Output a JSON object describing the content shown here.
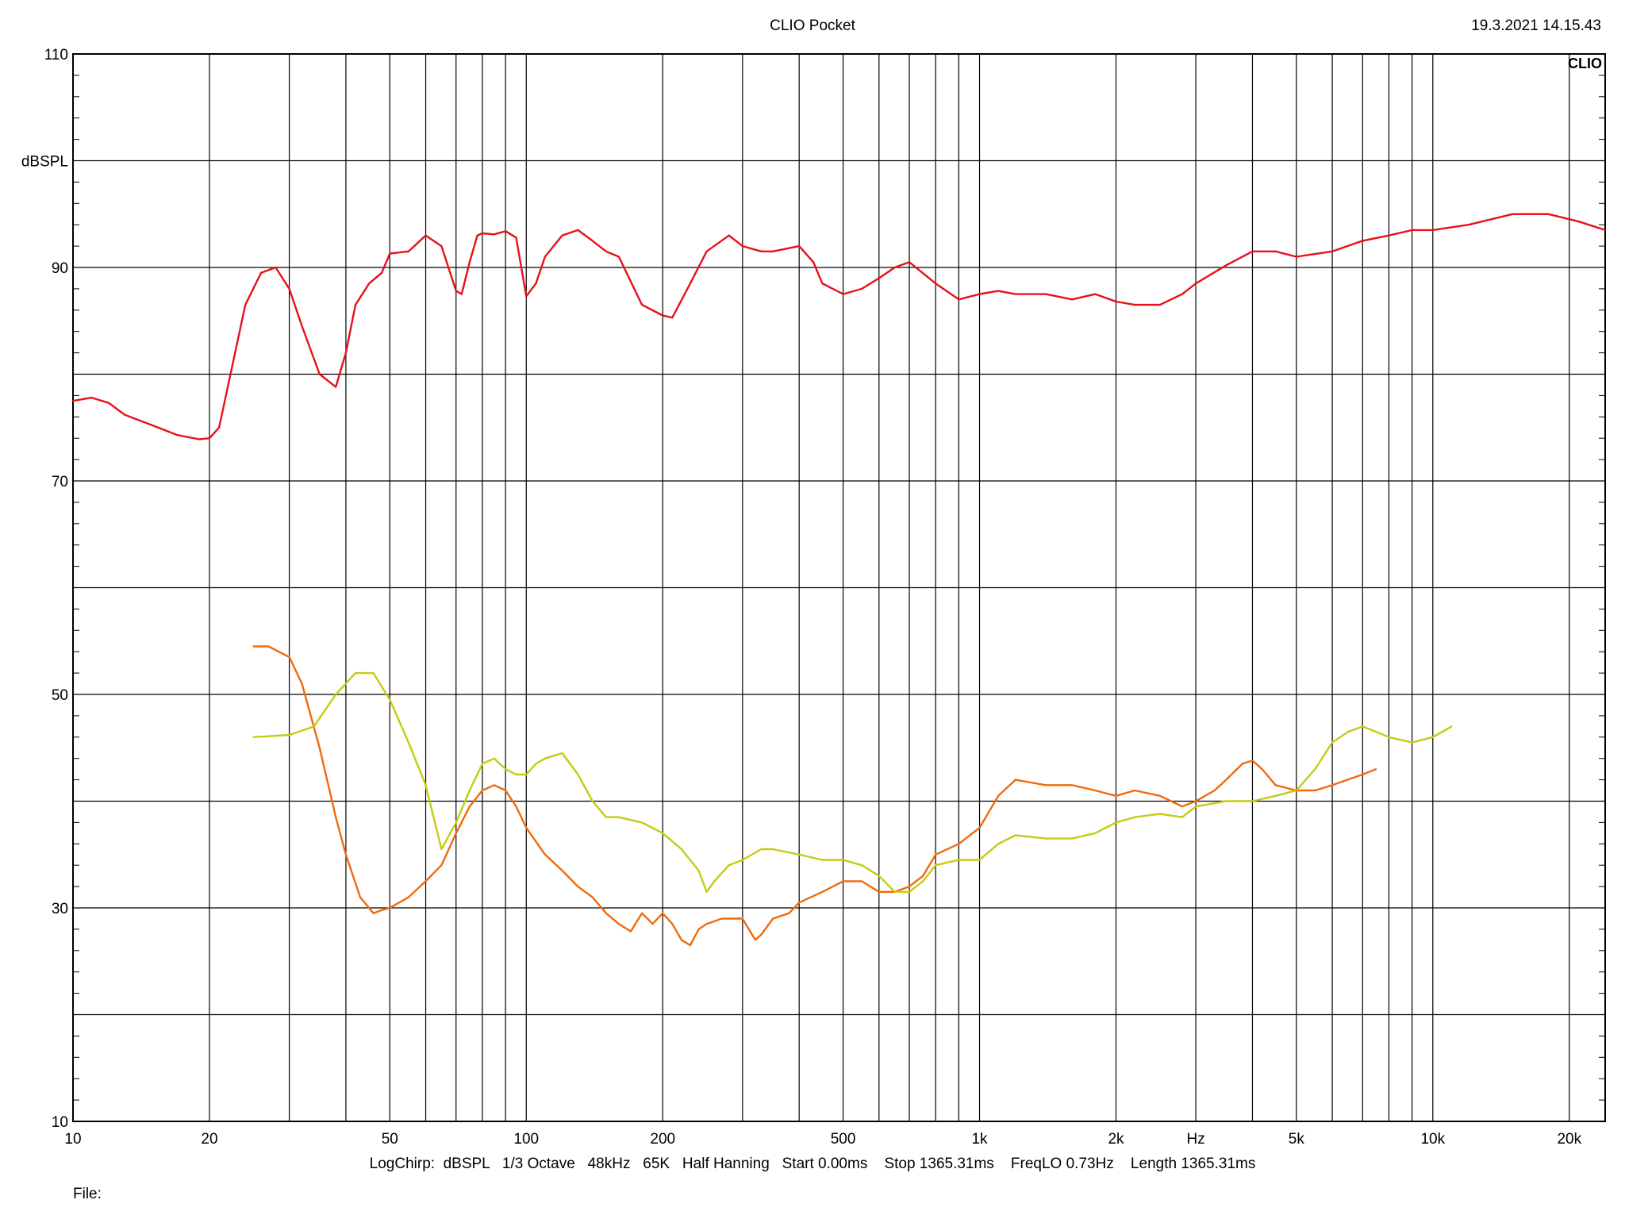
{
  "header": {
    "title": "CLIO Pocket",
    "datetime": "19.3.2021 14.15.43",
    "logo_text": "CLIO"
  },
  "footer": {
    "params": "LogChirp:  dBSPL   1/3 Octave   48kHz   65K   Half Hanning   Start 0.00ms    Stop 1365.31ms    FreqLO 0.73Hz    Length 1365.31ms",
    "file_label": "File:"
  },
  "colors": {
    "red": "#e8101a",
    "orange": "#f06a0c",
    "yellow": "#c4cc12",
    "grid": "#000000"
  },
  "chart_data": {
    "type": "line",
    "title": "CLIO Pocket",
    "xlabel": "Hz",
    "ylabel": "dBSPL",
    "xscale": "log",
    "xlim": [
      10,
      24000
    ],
    "ylim": [
      10,
      110
    ],
    "grid": true,
    "y_ticks": [
      {
        "v": 10,
        "label": "10"
      },
      {
        "v": 30,
        "label": "30"
      },
      {
        "v": 50,
        "label": "50"
      },
      {
        "v": 70,
        "label": "70"
      },
      {
        "v": 90,
        "label": "90"
      },
      {
        "v": 110,
        "label": "110"
      }
    ],
    "x_ticks": [
      {
        "v": 10,
        "label": "10"
      },
      {
        "v": 20,
        "label": "20"
      },
      {
        "v": 50,
        "label": "50"
      },
      {
        "v": 100,
        "label": "100"
      },
      {
        "v": 200,
        "label": "200"
      },
      {
        "v": 500,
        "label": "500"
      },
      {
        "v": 1000,
        "label": "1k"
      },
      {
        "v": 2000,
        "label": "2k"
      },
      {
        "v": 5000,
        "label": "5k"
      },
      {
        "v": 10000,
        "label": "10k"
      },
      {
        "v": 20000,
        "label": "20k"
      }
    ],
    "x_unit_label": "Hz",
    "series": [
      {
        "color": "#e8101a",
        "x": [
          10,
          11,
          12,
          13,
          15,
          17,
          19,
          20,
          21,
          22,
          24,
          26,
          28,
          30,
          32,
          35,
          38,
          40,
          42,
          45,
          48,
          50,
          55,
          60,
          65,
          70,
          72,
          75,
          78,
          80,
          85,
          90,
          95,
          100,
          105,
          110,
          120,
          130,
          140,
          150,
          160,
          180,
          200,
          210,
          230,
          250,
          280,
          300,
          330,
          350,
          400,
          430,
          450,
          500,
          550,
          600,
          650,
          700,
          800,
          900,
          1000,
          1100,
          1200,
          1400,
          1600,
          1800,
          2000,
          2200,
          2500,
          2800,
          3000,
          3500,
          4000,
          4500,
          5000,
          6000,
          7000,
          8000,
          9000,
          10000,
          12000,
          15000,
          18000,
          21000,
          24000
        ],
        "y": [
          77.5,
          77.8,
          77.3,
          76.2,
          75.2,
          74.3,
          73.9,
          74.0,
          75.0,
          79.0,
          86.5,
          89.5,
          90.0,
          88.0,
          84.5,
          80.0,
          78.8,
          82.0,
          86.5,
          88.5,
          89.5,
          91.3,
          91.5,
          93.0,
          92.0,
          87.8,
          87.5,
          90.5,
          93.0,
          93.2,
          93.1,
          93.4,
          92.8,
          87.3,
          88.5,
          91.0,
          93.0,
          93.5,
          92.5,
          91.5,
          91.0,
          86.5,
          85.5,
          85.3,
          88.5,
          91.5,
          93.0,
          92.0,
          91.5,
          91.5,
          92.0,
          90.5,
          88.5,
          87.5,
          88.0,
          89.0,
          90.0,
          90.5,
          88.5,
          87.0,
          87.5,
          87.8,
          87.5,
          87.5,
          87.0,
          87.5,
          86.8,
          86.5,
          86.5,
          87.5,
          88.5,
          90.2,
          91.5,
          91.5,
          91.0,
          91.5,
          92.5,
          93.0,
          93.5,
          93.5,
          94.0,
          95.0,
          95.0,
          94.3,
          93.5
        ]
      },
      {
        "color": "#f06a0c",
        "x": [
          25,
          27,
          30,
          32,
          35,
          38,
          40,
          43,
          46,
          48,
          50,
          55,
          60,
          65,
          70,
          75,
          80,
          85,
          90,
          95,
          100,
          110,
          120,
          130,
          140,
          150,
          160,
          170,
          180,
          190,
          200,
          210,
          220,
          230,
          240,
          250,
          270,
          300,
          320,
          330,
          350,
          380,
          400,
          450,
          500,
          550,
          600,
          650,
          700,
          750,
          800,
          900,
          1000,
          1100,
          1200,
          1400,
          1600,
          1800,
          2000,
          2200,
          2500,
          2800,
          3000,
          3300,
          3500,
          3800,
          4000,
          4200,
          4500,
          5000,
          5500,
          6000,
          7000,
          7500
        ],
        "y": [
          54.5,
          54.5,
          53.5,
          51.0,
          45.0,
          38.5,
          35.0,
          31.0,
          29.5,
          29.8,
          30.0,
          31.0,
          32.5,
          34.0,
          37.0,
          39.5,
          41.0,
          41.5,
          41.0,
          39.5,
          37.5,
          35.0,
          33.5,
          32.0,
          31.0,
          29.5,
          28.5,
          27.8,
          29.5,
          28.5,
          29.5,
          28.5,
          27.0,
          26.5,
          28.0,
          28.5,
          29.0,
          29.0,
          27.0,
          27.5,
          29.0,
          29.5,
          30.5,
          31.5,
          32.5,
          32.5,
          31.5,
          31.5,
          32.0,
          33.0,
          35.0,
          36.0,
          37.5,
          40.5,
          42.0,
          41.5,
          41.5,
          41.0,
          40.5,
          41.0,
          40.5,
          39.5,
          40.0,
          41.0,
          42.0,
          43.5,
          43.8,
          43.0,
          41.5,
          41.0,
          41.0,
          41.5,
          42.5,
          43.0
        ]
      },
      {
        "color": "#c4cc12",
        "x": [
          25,
          30,
          34,
          38,
          42,
          46,
          50,
          55,
          60,
          65,
          70,
          75,
          80,
          85,
          90,
          95,
          100,
          105,
          110,
          120,
          130,
          140,
          150,
          160,
          180,
          200,
          220,
          240,
          250,
          260,
          280,
          300,
          330,
          350,
          400,
          450,
          500,
          550,
          600,
          650,
          700,
          750,
          800,
          900,
          1000,
          1100,
          1200,
          1400,
          1600,
          1800,
          2000,
          2200,
          2500,
          2800,
          3000,
          3500,
          4000,
          4500,
          5000,
          5500,
          6000,
          6500,
          7000,
          7500,
          8000,
          9000,
          10000,
          11000
        ],
        "y": [
          46.0,
          46.2,
          47.0,
          50.0,
          52.0,
          52.0,
          49.5,
          45.5,
          41.5,
          35.5,
          38.0,
          41.0,
          43.5,
          44.0,
          43.0,
          42.5,
          42.5,
          43.5,
          44.0,
          44.5,
          42.5,
          40.0,
          38.5,
          38.5,
          38.0,
          37.0,
          35.5,
          33.5,
          31.5,
          32.5,
          34.0,
          34.5,
          35.5,
          35.5,
          35.0,
          34.5,
          34.5,
          34.0,
          33.0,
          31.5,
          31.5,
          32.5,
          34.0,
          34.5,
          34.5,
          36.0,
          36.8,
          36.5,
          36.5,
          37.0,
          38.0,
          38.5,
          38.8,
          38.5,
          39.5,
          40.0,
          40.0,
          40.5,
          41.0,
          43.0,
          45.5,
          46.5,
          47.0,
          46.5,
          46.0,
          45.5,
          46.0,
          47.0
        ]
      }
    ]
  }
}
